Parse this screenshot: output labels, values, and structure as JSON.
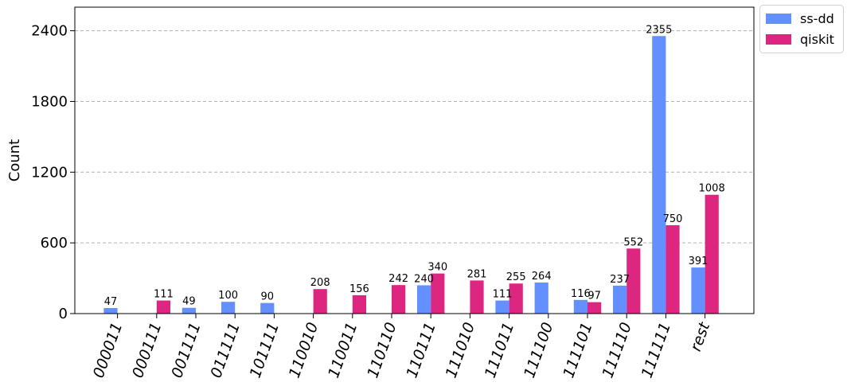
{
  "chart_data": {
    "type": "bar",
    "title": "",
    "xlabel": "",
    "ylabel": "Count",
    "ylim": [
      0,
      2600
    ],
    "yticks": [
      0,
      600,
      1200,
      1800,
      2400
    ],
    "grid": "horizontal dashed",
    "legend_position": "outside top-right",
    "categories": [
      "000011",
      "000111",
      "001111",
      "011111",
      "101111",
      "110010",
      "110011",
      "110110",
      "110111",
      "111010",
      "111011",
      "111100",
      "111101",
      "111110",
      "111111",
      "rest"
    ],
    "series": [
      {
        "name": "ss-dd",
        "color": "#648fff",
        "values": [
          47,
          null,
          49,
          100,
          90,
          null,
          null,
          null,
          240,
          null,
          111,
          264,
          116,
          237,
          2355,
          391
        ]
      },
      {
        "name": "qiskit",
        "color": "#dc267f",
        "values": [
          null,
          111,
          null,
          null,
          null,
          208,
          156,
          242,
          340,
          281,
          255,
          null,
          97,
          552,
          750,
          1008
        ]
      }
    ]
  }
}
